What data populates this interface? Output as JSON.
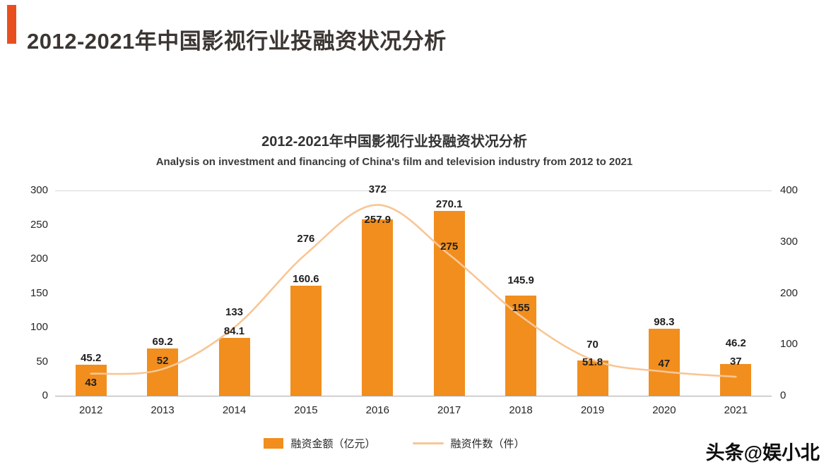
{
  "page": {
    "header_title": "2012-2021年中国影视行业投融资状况分析",
    "watermark": "头条@娱小北"
  },
  "chart_data": {
    "type": "bar+line",
    "title": "2012-2021年中国影视行业投融资状况分析",
    "subtitle": "Analysis on investment and financing of China's film and television industry from 2012 to 2021",
    "categories": [
      "2012",
      "2013",
      "2014",
      "2015",
      "2016",
      "2017",
      "2018",
      "2019",
      "2020",
      "2021"
    ],
    "series": [
      {
        "name": "融资金额（亿元）",
        "type": "bar",
        "axis": "left",
        "color": "#f18e1e",
        "values": [
          45.2,
          69.2,
          84.1,
          160.6,
          257.9,
          270.1,
          145.9,
          51.8,
          98.3,
          46.2
        ]
      },
      {
        "name": "融资件数（件）",
        "type": "line",
        "axis": "right",
        "color": "#f8c694",
        "values": [
          43,
          52,
          133,
          276,
          372,
          275,
          155,
          70,
          47,
          37
        ]
      }
    ],
    "left_axis": {
      "min": 0,
      "max": 300,
      "ticks": [
        0,
        50,
        100,
        150,
        200,
        250,
        300
      ]
    },
    "right_axis": {
      "min": 0,
      "max": 400,
      "ticks": [
        0,
        100,
        200,
        300,
        400
      ]
    },
    "grid": "top-and-bottom-border-only",
    "legend_position": "bottom"
  }
}
